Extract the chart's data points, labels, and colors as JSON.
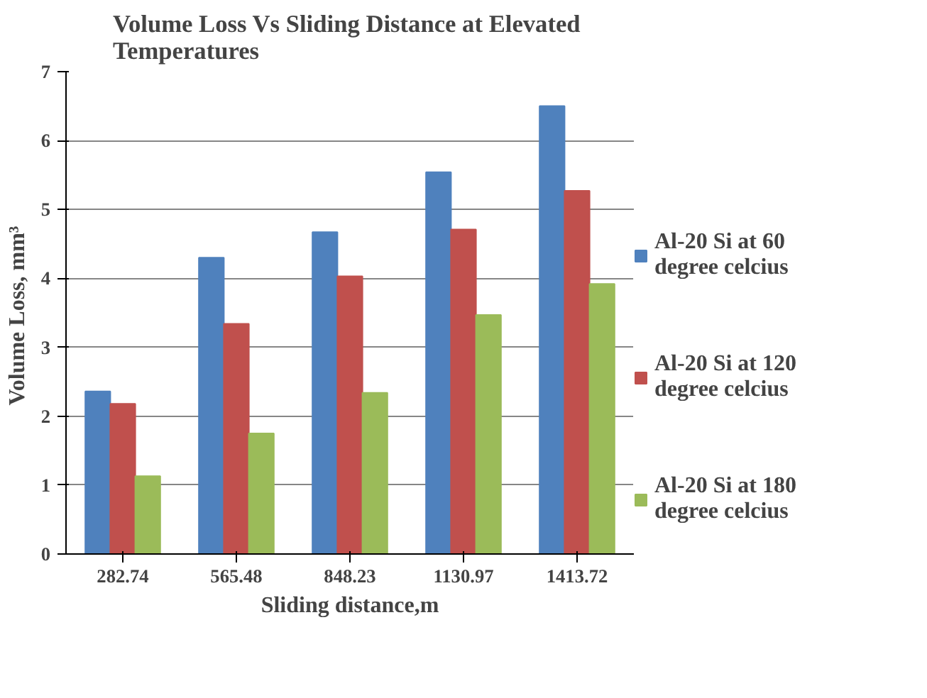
{
  "chart_data": {
    "type": "bar",
    "title": "Volume Loss Vs  Sliding Distance at Elevated Temperatures",
    "xlabel": "Sliding distance,m",
    "ylabel": "Volume Loss,  mm³",
    "categories": [
      "282.74",
      "565.48",
      "848.23",
      "1130.97",
      "1413.72"
    ],
    "series": [
      {
        "name": "Al-20 Si at 60 degree celcius",
        "color": "#4f81bd",
        "values": [
          2.36,
          4.3,
          4.67,
          5.54,
          6.5
        ]
      },
      {
        "name": "Al-20 Si at 120 degree celcius",
        "color": "#c0504d",
        "values": [
          2.18,
          3.34,
          4.03,
          4.71,
          5.27
        ]
      },
      {
        "name": "Al-20 Si at 180 degree celcius",
        "color": "#9bbb59",
        "values": [
          1.13,
          1.75,
          2.34,
          3.47,
          3.92
        ]
      }
    ],
    "ylim": [
      0,
      7
    ],
    "yticks": [
      0,
      1,
      2,
      3,
      4,
      5,
      6,
      7
    ],
    "grid": "y",
    "legend": "right"
  }
}
